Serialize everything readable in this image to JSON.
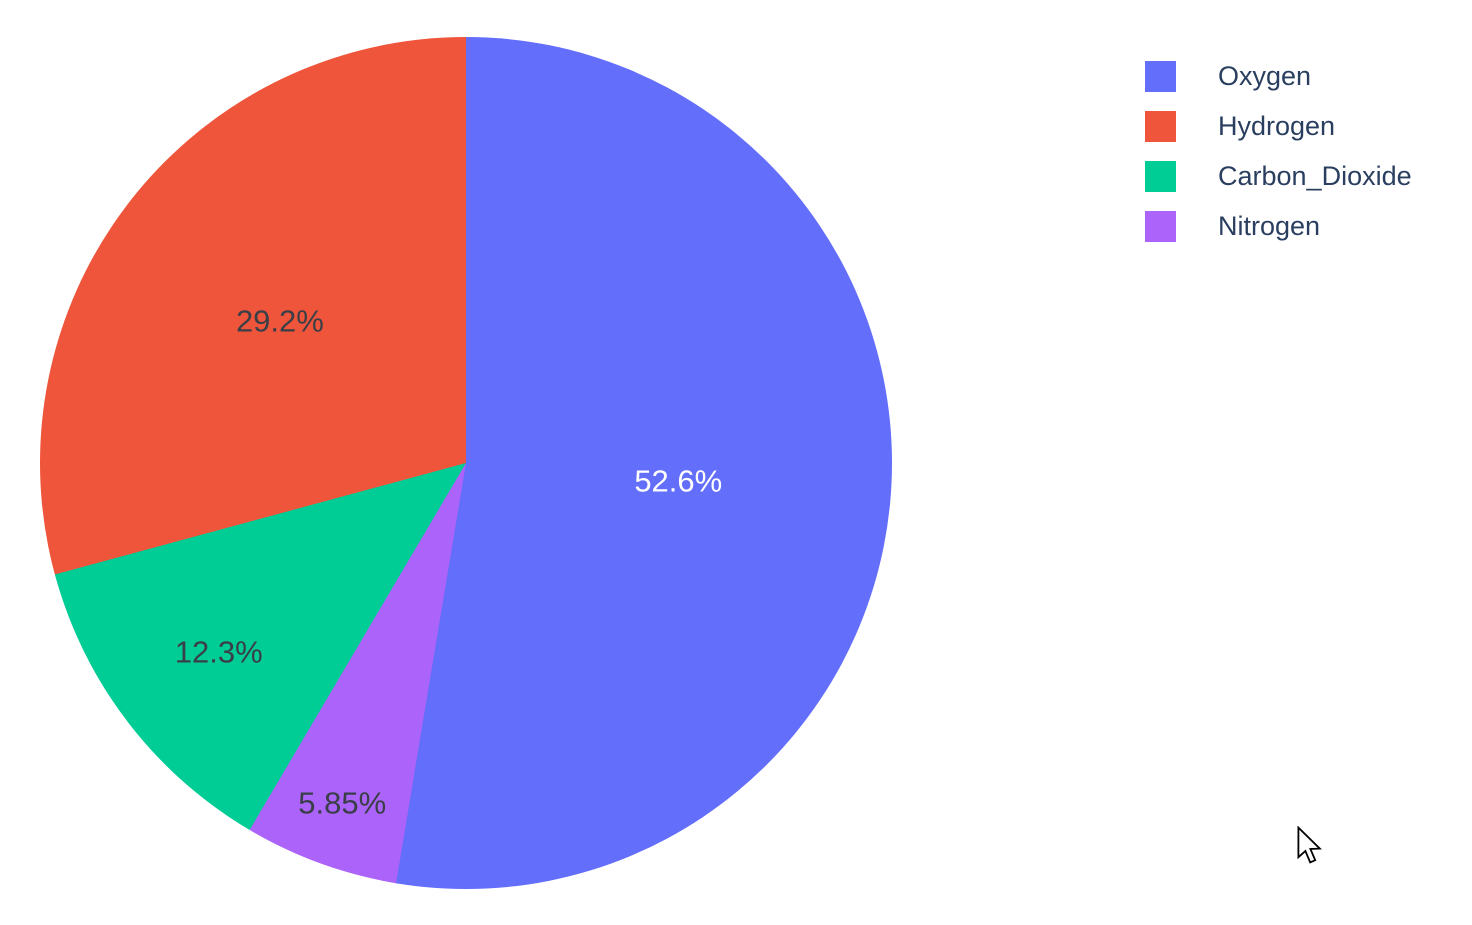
{
  "chart_data": {
    "type": "pie",
    "title": "",
    "labels": [
      "Oxygen",
      "Hydrogen",
      "Carbon_Dioxide",
      "Nitrogen"
    ],
    "values": [
      52.6,
      29.2,
      12.3,
      5.85
    ],
    "display_percents": [
      "52.6%",
      "29.2%",
      "12.3%",
      "5.85%"
    ],
    "colors": [
      "#636efa",
      "#ef553b",
      "#00cc96",
      "#ab63fa"
    ],
    "slice_label_colors": [
      "#ffffff",
      "#3a3f47",
      "#3a3f47",
      "#3a3f47"
    ],
    "start_angle_deg": 0,
    "direction": "clockwise",
    "clockwise_order_indices": [
      0,
      3,
      2,
      1
    ],
    "label_radius_fraction": [
      0.5,
      0.55,
      0.73,
      0.85
    ],
    "legend_position": "top-right",
    "background_color": "#ffffff"
  },
  "legend": {
    "text_color": "#2a3f5f",
    "items": [
      {
        "label": "Oxygen",
        "color": "#636efa"
      },
      {
        "label": "Hydrogen",
        "color": "#ef553b"
      },
      {
        "label": "Carbon_Dioxide",
        "color": "#00cc96"
      },
      {
        "label": "Nitrogen",
        "color": "#ab63fa"
      }
    ]
  },
  "cursor": {
    "icon": "arrow-cursor"
  }
}
